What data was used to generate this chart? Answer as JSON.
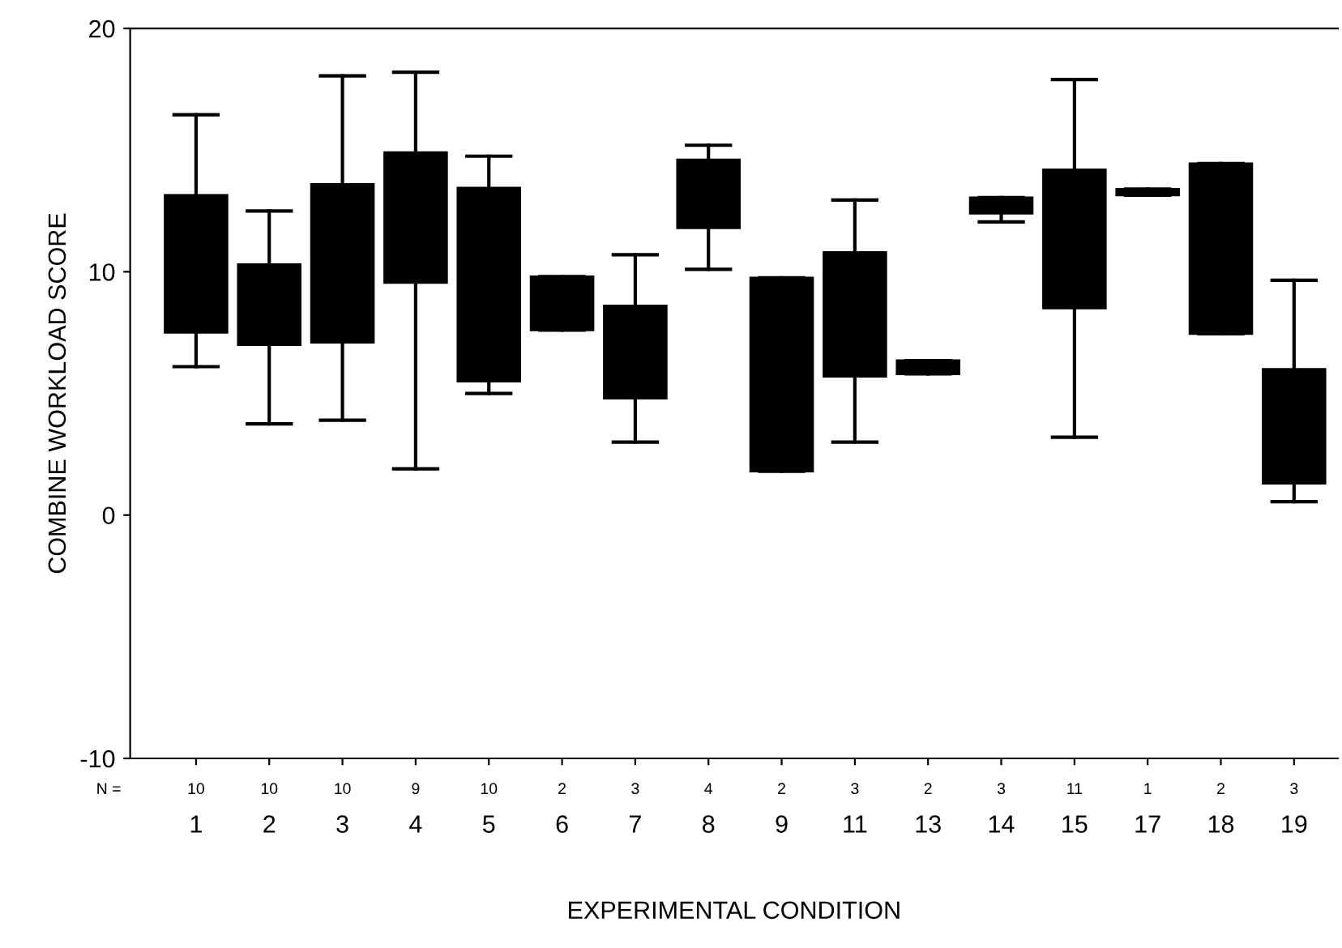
{
  "chart_data": {
    "type": "box",
    "xlabel": "EXPERIMENTAL CONDITION",
    "ylabel": "COMBINE WORKLOAD SCORE",
    "categories": [
      "1",
      "2",
      "3",
      "4",
      "5",
      "6",
      "7",
      "8",
      "9",
      "11",
      "13",
      "14",
      "15",
      "17",
      "18",
      "19"
    ],
    "color": "#000000",
    "boxes": [
      {
        "low": 6.1,
        "q1": 7.5,
        "q3": 13.15,
        "high": 16.45
      },
      {
        "low": 3.75,
        "q1": 7.0,
        "q3": 10.3,
        "high": 12.5
      },
      {
        "low": 3.9,
        "q1": 7.1,
        "q3": 13.6,
        "high": 18.05
      },
      {
        "low": 1.9,
        "q1": 9.55,
        "q3": 14.9,
        "high": 18.2
      },
      {
        "low": 5.0,
        "q1": 5.5,
        "q3": 13.45,
        "high": 14.75
      },
      {
        "low": 7.6,
        "q1": 7.6,
        "q3": 9.8,
        "high": 9.8
      },
      {
        "low": 3.0,
        "q1": 4.8,
        "q3": 8.6,
        "high": 10.7
      },
      {
        "low": 10.1,
        "q1": 11.8,
        "q3": 14.6,
        "high": 15.2
      },
      {
        "low": 1.8,
        "q1": 1.8,
        "q3": 9.75,
        "high": 9.75
      },
      {
        "low": 3.0,
        "q1": 5.7,
        "q3": 10.8,
        "high": 12.95
      },
      {
        "low": 5.8,
        "q1": 5.8,
        "q3": 6.35,
        "high": 6.35
      },
      {
        "low": 12.05,
        "q1": 12.4,
        "q3": 13.05,
        "high": 13.05
      },
      {
        "low": 3.2,
        "q1": 8.5,
        "q3": 14.2,
        "high": 17.9
      },
      {
        "low": 13.15,
        "q1": 13.15,
        "q3": 13.4,
        "high": 13.4
      },
      {
        "low": 7.45,
        "q1": 7.45,
        "q3": 14.45,
        "high": 14.45
      },
      {
        "low": 0.55,
        "q1": 1.3,
        "q3": 6.0,
        "high": 9.65
      }
    ],
    "ylim": [
      -10,
      20
    ],
    "yticks": [
      -10,
      0,
      10,
      20
    ],
    "grid": false,
    "legend": false,
    "annotations": [
      "N =",
      "10",
      "10",
      "10",
      "9",
      "10",
      "2",
      "3",
      "4",
      "2",
      "3",
      "2",
      "3",
      "11",
      "1",
      "2",
      "3"
    ]
  }
}
